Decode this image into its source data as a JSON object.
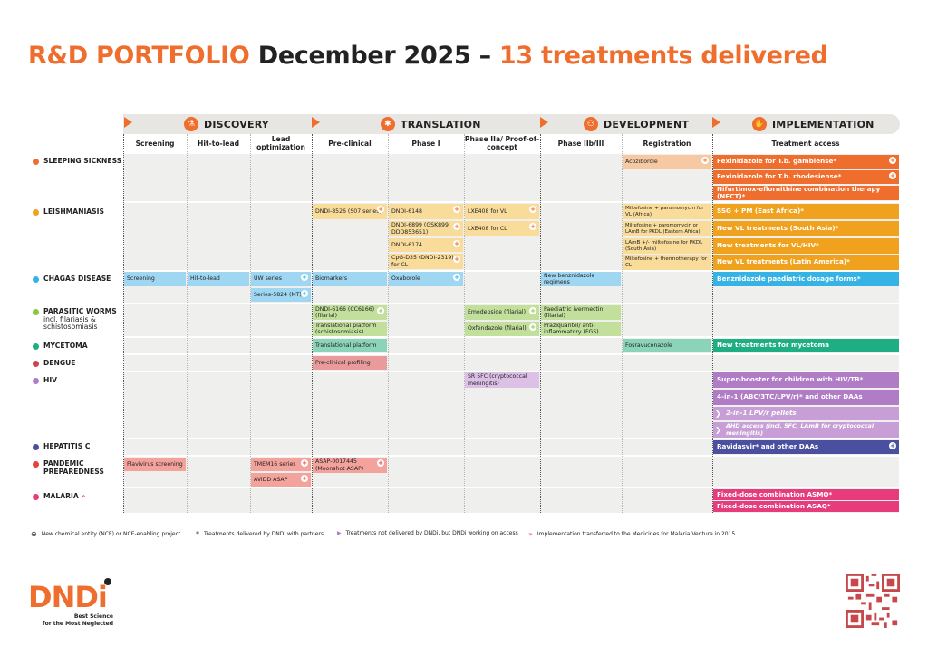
{
  "title": {
    "part1": "R&D PORTFOLIO",
    "part2": "December 2025 –",
    "part3": "13 treatments delivered"
  },
  "phases": [
    {
      "label": "DISCOVERY",
      "icon": "flask-icon",
      "glyph": "⚗"
    },
    {
      "label": "TRANSLATION",
      "icon": "molecule-icon",
      "glyph": "✱"
    },
    {
      "label": "DEVELOPMENT",
      "icon": "people-icon",
      "glyph": "⚇"
    },
    {
      "label": "IMPLEMENTATION",
      "icon": "handshake-icon",
      "glyph": "✋"
    }
  ],
  "stages": [
    "Screening",
    "Hit-to-lead",
    "Lead optimization",
    "Pre-clinical",
    "Phase I",
    "Phase IIa/ Proof-of-concept",
    "Phase IIb/III",
    "Registration",
    "Treatment access"
  ],
  "diseases": [
    {
      "name": "SLEEPING SICKNESS",
      "sub": "",
      "color": "#ef6d2d"
    },
    {
      "name": "LEISHMANIASIS",
      "sub": "",
      "color": "#f0a21f"
    },
    {
      "name": "CHAGAS DISEASE",
      "sub": "",
      "color": "#34b3e4"
    },
    {
      "name": "PARASITIC WORMS",
      "sub": "incl. filariasis & schistosomiasis",
      "color": "#8cc63f"
    },
    {
      "name": "MYCETOMA",
      "sub": "",
      "color": "#1fae84"
    },
    {
      "name": "DENGUE",
      "sub": "",
      "color": "#c8474b"
    },
    {
      "name": "HIV",
      "sub": "",
      "color": "#b07cc6"
    },
    {
      "name": "HEPATITIS C",
      "sub": "",
      "color": "#4b4f9f"
    },
    {
      "name": "PANDEMIC PREPAREDNESS",
      "sub": "",
      "color": "#e8403a"
    },
    {
      "name": "MALARIA",
      "sub": "»",
      "color": "#e63c7c"
    }
  ],
  "colors": {
    "orange": "#ef6d2d",
    "ss_light": "#f7c9a3",
    "leish": "#f0a21f",
    "leish_light": "#f9dc9a",
    "chagas": "#34b3e4",
    "chagas_light": "#9fd7f2",
    "worms_light": "#c2e09b",
    "myc": "#1fae84",
    "myc_light": "#8bd3b9",
    "dengue_light": "#e99a9b",
    "hiv": "#b07cc6",
    "hiv_light": "#dcc0e6",
    "hep": "#4b4f9f",
    "pp_light": "#f4a29c",
    "malaria": "#e63c7c"
  },
  "cells": {
    "ss_acoz": "Acoziborole",
    "ss_t1": "Fexinidazole for T.b. gambiense*",
    "ss_t2": "Fexinidazole for T.b. rhodesiense*",
    "ss_t3": "Nifurtimox-eflornithine combination therapy (NECT)*",
    "l_8526": "DNDI-8526 (S07 series)",
    "l_6148": "DNDI-6148",
    "l_6899": "DNDI-6899 (GSK899 DDD853651)",
    "l_6174": "DNDI-6174",
    "l_cpg": "CpG-D35 (DNDI-2319) for CL",
    "l_lxevl": "LXE408 for VL",
    "l_lxecl": "LXE408 for CL",
    "l_r1": "Miltefosine + paromomycin for VL (Africa)",
    "l_r2": "Miltefosine + paromomycin or LAmB for PKDL (Eastern Africa)",
    "l_r3": "LAmB +/- miltefosine for PKDL (South Asia)",
    "l_r4": "Miltefosine + thermotherapy for CL",
    "l_t1": "SSG + PM (East Africa)*",
    "l_t2": "New VL treatments (South Asia)*",
    "l_t3": "New treatments for VL/HIV*",
    "l_t4": "New VL treatments (Latin America)*",
    "c_scr": "Screening",
    "c_h2l": "Hit-to-lead",
    "c_uw": "UW series",
    "c_5824": "Series-5824 (MT)",
    "c_bio": "Biomarkers",
    "c_oxa": "Oxaborole",
    "c_benz": "New benznidazole regimens",
    "c_t1": "Benznidazole paediatric dosage forms*",
    "w_6166": "DNDI-6166 (CC6166) (filarial)",
    "w_tp": "Translational platform (schistosomiasis)",
    "w_emo": "Emodepside (filarial)",
    "w_oxf": "Oxfendazole (filarial)",
    "w_iver": "Paediatric ivermectin (filarial)",
    "w_prazi": "Praziquantel/ anti-inflammatory (FGS)",
    "m_tp": "Translational platform",
    "m_fos": "Fosravuconazole",
    "m_t1": "New treatments for mycetoma",
    "d_pre": "Pre-clinical profiling",
    "h_sr": "SR 5FC (cryptococcal meningitis)",
    "h_t1": "Super-booster for children with HIV/TB*",
    "h_t2": "4-in-1 (ABC/3TC/LPV/r)* and other DAAs",
    "h_t3": "2-in-1 LPV/r pellets",
    "h_t4": "AHD access (incl. 5FC, LAmB for cryptococcal meningitis)",
    "hc_t1": "Ravidasvir* and other DAAs",
    "p_flavi": "Flavivirus screening",
    "p_tmem": "TMEM16 series",
    "p_avidd": "AViDD ASAP",
    "p_asap": "ASAP-0017445 (Moonshot ASAP)",
    "ma_t1": "Fixed-dose combination ASMQ*",
    "ma_t2": "Fixed-dose combination ASAQ*"
  },
  "legend": [
    {
      "sym": "⊕",
      "text": "New chemical entity (NCE) or NCE-enabling project"
    },
    {
      "sym": "*",
      "text": "Treatments delivered by DNDi with partners"
    },
    {
      "sym": "▶",
      "text": "Treatments not delivered by DNDi, but DNDi working on access"
    },
    {
      "sym": "»",
      "text": "Implementation transferred to the Medicines for Malaria Venture in 2015"
    }
  ],
  "logo": {
    "text": "DNDi",
    "tagline1": "Best Science",
    "tagline2": "for the Most Neglected"
  }
}
